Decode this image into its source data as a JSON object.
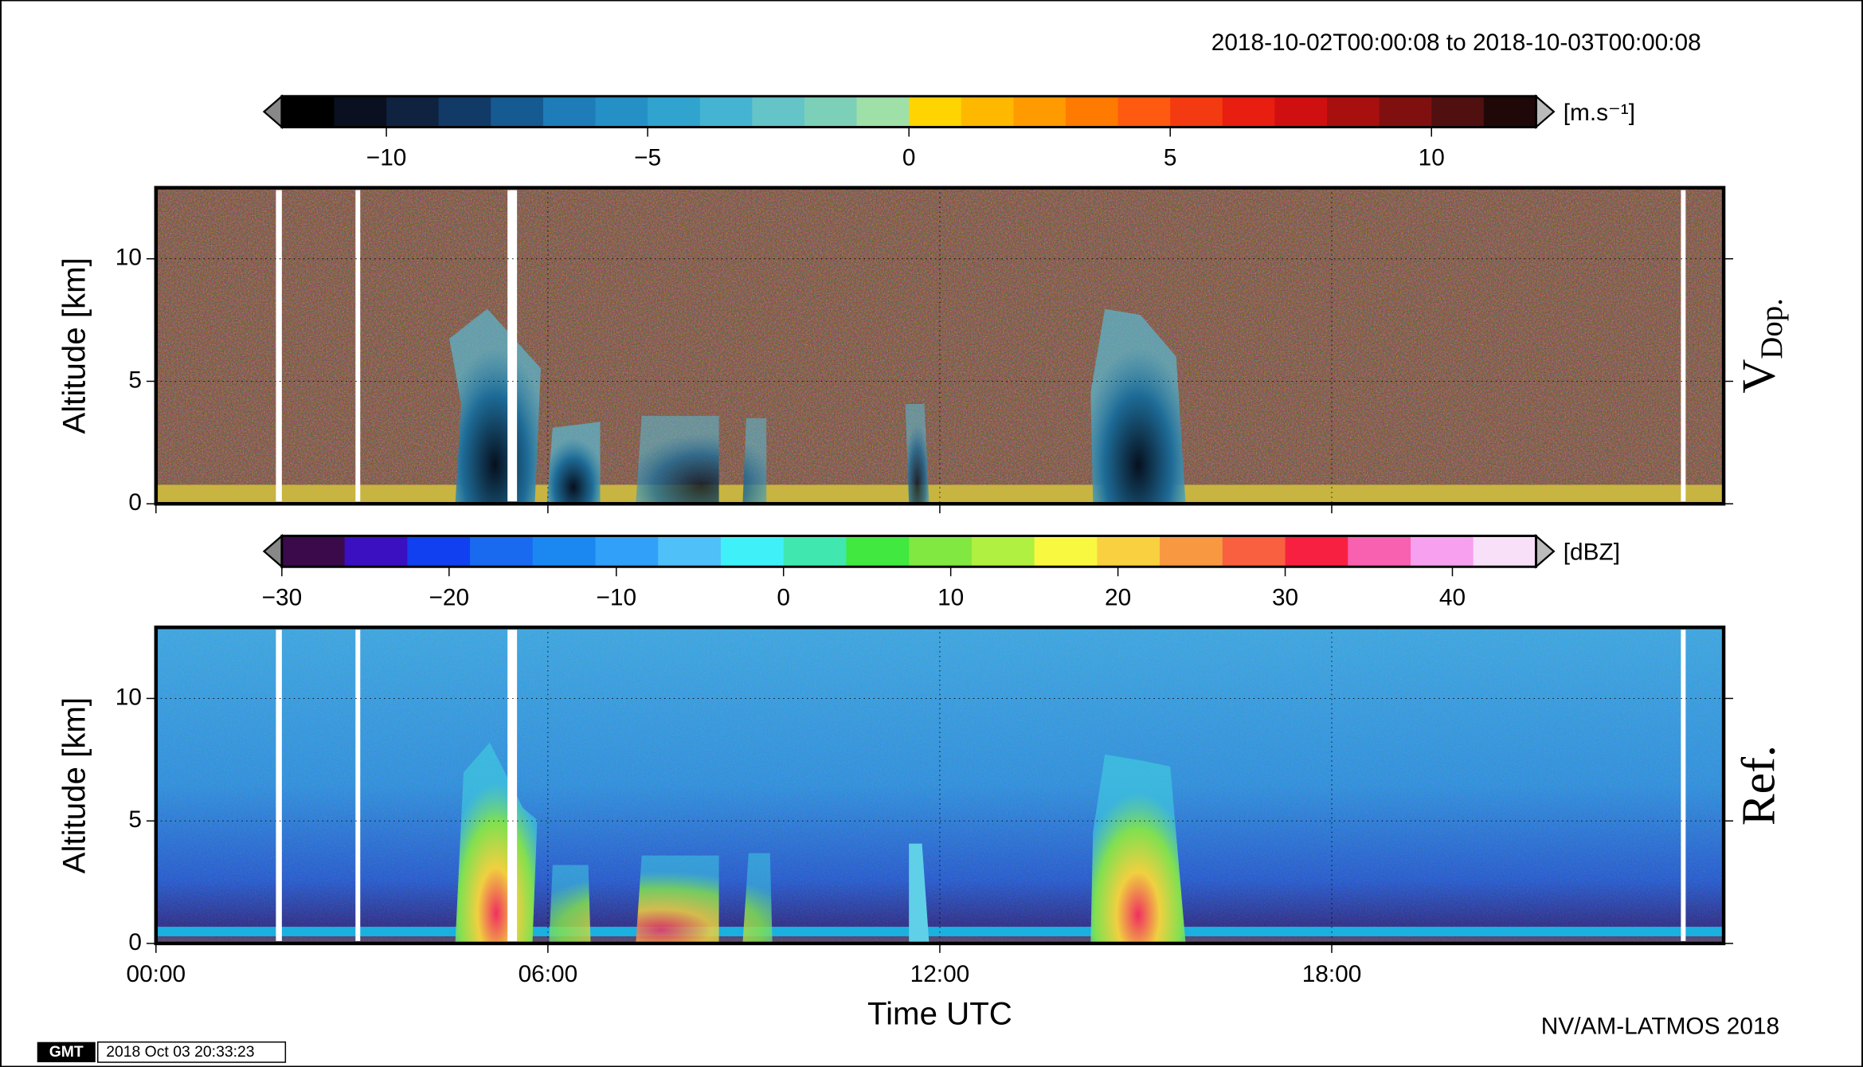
{
  "title": "2018-10-02T00:00:08 to 2018-10-03T00:00:08",
  "footer": "NV/AM-LATMOS 2018",
  "timestamp": "2018 Oct 03 20:33:23",
  "logo": "GMT",
  "chart_data": [
    {
      "type": "heatmap",
      "panel_label": "V",
      "panel_label_subscript": "Dop.",
      "ylabel": "Altitude [km]",
      "xlim": [
        0,
        24
      ],
      "xticks": [
        0,
        6,
        12,
        18
      ],
      "show_xtick_labels": false,
      "ylim": [
        0,
        12.9
      ],
      "yticks": [
        0,
        5,
        10
      ],
      "grid": true,
      "colorbar": {
        "unit": "[m.s⁻¹]",
        "lim": [
          -12,
          12
        ],
        "ticks": [
          {
            "value": -10,
            "label": "−10"
          },
          {
            "value": -5,
            "label": "−5"
          },
          0,
          5,
          10
        ],
        "colors": [
          "#000000",
          "#0a1020",
          "#0f2340",
          "#123a66",
          "#165a92",
          "#1e7db8",
          "#2590c6",
          "#30a3cf",
          "#45b4d2",
          "#64c4c8",
          "#7cd0b8",
          "#9ee0a8",
          "#ffd400",
          "#ffb800",
          "#ff9a00",
          "#ff7a00",
          "#ff5a10",
          "#f43a10",
          "#e81e10",
          "#d01010",
          "#a81010",
          "#801010",
          "#501010",
          "#200808"
        ]
      }
    },
    {
      "type": "heatmap",
      "panel_label": "Ref.",
      "ylabel": "Altitude [km]",
      "xlabel": "Time UTC",
      "xlim": [
        0,
        24
      ],
      "xticks": [
        {
          "value": 0,
          "label": "00:00"
        },
        {
          "value": 6,
          "label": "06:00"
        },
        {
          "value": 12,
          "label": "12:00"
        },
        {
          "value": 18,
          "label": "18:00"
        }
      ],
      "show_xtick_labels": true,
      "ylim": [
        0,
        12.9
      ],
      "yticks": [
        0,
        5,
        10
      ],
      "grid": true,
      "colorbar": {
        "unit": "[dBZ]",
        "lim": [
          -30,
          45
        ],
        "ticks": [
          {
            "value": -30,
            "label": "−30"
          },
          {
            "value": -20,
            "label": "−20"
          },
          {
            "value": -10,
            "label": "−10"
          },
          0,
          10,
          20,
          30,
          40
        ],
        "colors": [
          "#3a0a4a",
          "#3a10c0",
          "#1040f0",
          "#1a6af0",
          "#1a88f0",
          "#30a0f8",
          "#50c0f8",
          "#40f0f8",
          "#40e8b0",
          "#40e840",
          "#80e840",
          "#b0f040",
          "#f8f840",
          "#f8d040",
          "#f89840",
          "#f86040",
          "#f82040",
          "#f860b0",
          "#f8a0f0",
          "#f8e0f8"
        ]
      }
    }
  ]
}
